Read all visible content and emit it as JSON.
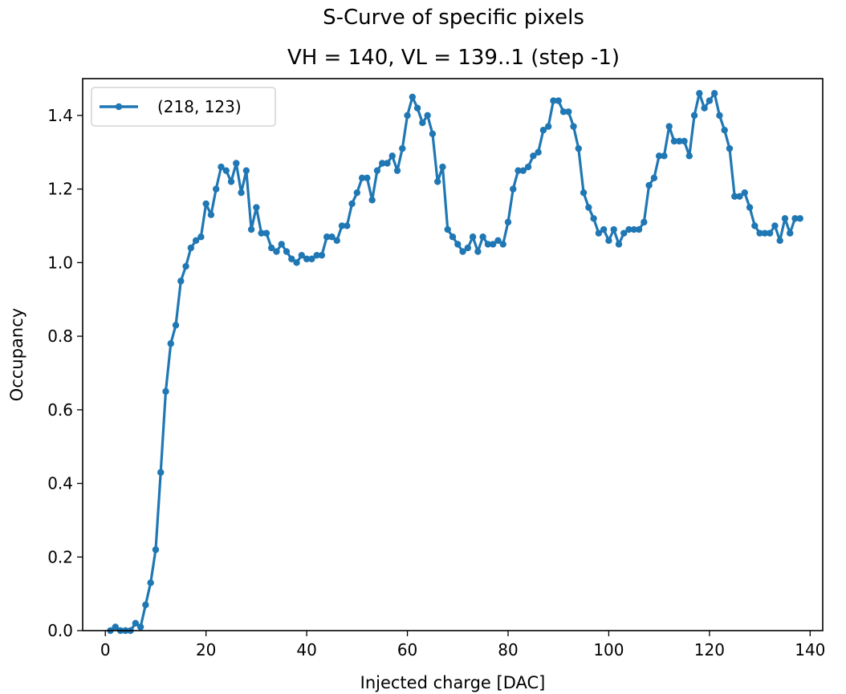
{
  "chart_data": {
    "type": "line",
    "title": "S-Curve of specific pixels",
    "subtitle": "VH = 140, VL = 139..1 (step -1)",
    "xlabel": "Injected charge [DAC]",
    "ylabel": "Occupancy",
    "xlim": [
      -4.5,
      142.5
    ],
    "ylim": [
      0.0,
      1.5
    ],
    "xticks": [
      0,
      20,
      40,
      60,
      80,
      100,
      120,
      140
    ],
    "yticks": [
      0.0,
      0.2,
      0.4,
      0.6,
      0.8,
      1.0,
      1.2,
      1.4
    ],
    "ytick_labels": [
      "0.0",
      "0.2",
      "0.4",
      "0.6",
      "0.8",
      "1.0",
      "1.2",
      "1.4"
    ],
    "grid": false,
    "legend_position": "top-left",
    "series": [
      {
        "name": "(218, 123)",
        "color": "#1f77b4",
        "marker": "circle",
        "x": [
          1,
          2,
          3,
          4,
          5,
          6,
          7,
          8,
          9,
          10,
          11,
          12,
          13,
          14,
          15,
          16,
          17,
          18,
          19,
          20,
          21,
          22,
          23,
          24,
          25,
          26,
          27,
          28,
          29,
          30,
          31,
          32,
          33,
          34,
          35,
          36,
          37,
          38,
          39,
          40,
          41,
          42,
          43,
          44,
          45,
          46,
          47,
          48,
          49,
          50,
          51,
          52,
          53,
          54,
          55,
          56,
          57,
          58,
          59,
          60,
          61,
          62,
          63,
          64,
          65,
          66,
          67,
          68,
          69,
          70,
          71,
          72,
          73,
          74,
          75,
          76,
          77,
          78,
          79,
          80,
          81,
          82,
          83,
          84,
          85,
          86,
          87,
          88,
          89,
          90,
          91,
          92,
          93,
          94,
          95,
          96,
          97,
          98,
          99,
          100,
          101,
          102,
          103,
          104,
          105,
          106,
          107,
          108,
          109,
          110,
          111,
          112,
          113,
          114,
          115,
          116,
          117,
          118,
          119,
          120,
          121,
          122,
          123,
          124,
          125,
          126,
          127,
          128,
          129,
          130,
          131,
          132,
          133,
          134,
          135,
          136,
          137,
          138
        ],
        "y": [
          0.0,
          0.01,
          0.0,
          0.0,
          0.0,
          0.02,
          0.01,
          0.07,
          0.13,
          0.22,
          0.43,
          0.65,
          0.78,
          0.83,
          0.95,
          0.99,
          1.04,
          1.06,
          1.07,
          1.16,
          1.13,
          1.2,
          1.26,
          1.25,
          1.22,
          1.27,
          1.19,
          1.25,
          1.09,
          1.15,
          1.08,
          1.08,
          1.04,
          1.03,
          1.05,
          1.03,
          1.01,
          1.0,
          1.02,
          1.01,
          1.01,
          1.02,
          1.02,
          1.07,
          1.07,
          1.06,
          1.1,
          1.1,
          1.16,
          1.19,
          1.23,
          1.23,
          1.17,
          1.25,
          1.27,
          1.27,
          1.29,
          1.25,
          1.31,
          1.4,
          1.45,
          1.42,
          1.38,
          1.4,
          1.35,
          1.22,
          1.26,
          1.09,
          1.07,
          1.05,
          1.03,
          1.04,
          1.07,
          1.03,
          1.07,
          1.05,
          1.05,
          1.06,
          1.05,
          1.11,
          1.2,
          1.25,
          1.25,
          1.26,
          1.29,
          1.3,
          1.36,
          1.37,
          1.44,
          1.44,
          1.41,
          1.41,
          1.37,
          1.31,
          1.19,
          1.15,
          1.12,
          1.08,
          1.09,
          1.06,
          1.09,
          1.05,
          1.08,
          1.09,
          1.09,
          1.09,
          1.11,
          1.21,
          1.23,
          1.29,
          1.29,
          1.37,
          1.33,
          1.33,
          1.33,
          1.29,
          1.4,
          1.46,
          1.42,
          1.44,
          1.46,
          1.4,
          1.36,
          1.31,
          1.18,
          1.18,
          1.19,
          1.15,
          1.1,
          1.08,
          1.08,
          1.08,
          1.1,
          1.06,
          1.12,
          1.08,
          1.12,
          1.12
        ]
      }
    ]
  }
}
